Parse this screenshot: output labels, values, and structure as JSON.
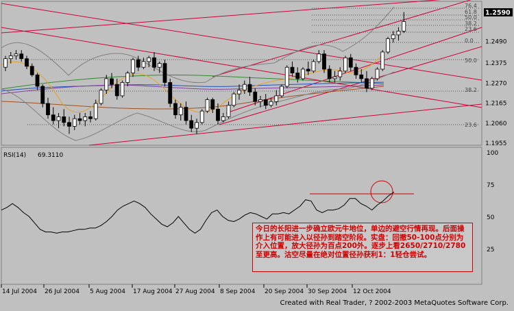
{
  "chart_data": [
    {
      "type": "candlestick",
      "panel": "price",
      "ylim": [
        1.1955,
        1.266
      ],
      "yticks": [
        "1.2590",
        "1.2490",
        "1.2375",
        "1.2270",
        "1.2165",
        "1.2060",
        "1.1955"
      ],
      "current_price": "1.2590",
      "fib_labels": [
        "76.4",
        "61.8",
        "50.0",
        "38.2",
        "23.6",
        "0.0",
        "50.0",
        "38.2",
        "23.6"
      ],
      "ohlc": [
        [
          1.235,
          1.241,
          1.233,
          1.2395
        ],
        [
          1.2395,
          1.243,
          1.237,
          1.241
        ],
        [
          1.241,
          1.244,
          1.239,
          1.242
        ],
        [
          1.242,
          1.244,
          1.238,
          1.2395
        ],
        [
          1.2395,
          1.241,
          1.234,
          1.2355
        ],
        [
          1.2355,
          1.237,
          1.23,
          1.231
        ],
        [
          1.231,
          1.232,
          1.223,
          1.225
        ],
        [
          1.225,
          1.226,
          1.214,
          1.216
        ],
        [
          1.216,
          1.219,
          1.208,
          1.21
        ],
        [
          1.21,
          1.214,
          1.205,
          1.207
        ],
        [
          1.207,
          1.211,
          1.203,
          1.209
        ],
        [
          1.209,
          1.213,
          1.204,
          1.206
        ],
        [
          1.206,
          1.209,
          1.2,
          1.204
        ],
        [
          1.204,
          1.21,
          1.202,
          1.208
        ],
        [
          1.208,
          1.211,
          1.205,
          1.207
        ],
        [
          1.207,
          1.211,
          1.204,
          1.209
        ],
        [
          1.209,
          1.212,
          1.206,
          1.208
        ],
        [
          1.208,
          1.218,
          1.207,
          1.216
        ],
        [
          1.216,
          1.224,
          1.215,
          1.223
        ],
        [
          1.223,
          1.231,
          1.221,
          1.229
        ],
        [
          1.229,
          1.232,
          1.224,
          1.226
        ],
        [
          1.226,
          1.229,
          1.218,
          1.22
        ],
        [
          1.22,
          1.228,
          1.219,
          1.227
        ],
        [
          1.227,
          1.233,
          1.225,
          1.232
        ],
        [
          1.232,
          1.24,
          1.23,
          1.239
        ],
        [
          1.239,
          1.241,
          1.233,
          1.235
        ],
        [
          1.235,
          1.24,
          1.234,
          1.238
        ],
        [
          1.238,
          1.241,
          1.235,
          1.24
        ],
        [
          1.24,
          1.243,
          1.233,
          1.235
        ],
        [
          1.235,
          1.238,
          1.232,
          1.237
        ],
        [
          1.237,
          1.239,
          1.225,
          1.227
        ],
        [
          1.227,
          1.229,
          1.214,
          1.216
        ],
        [
          1.216,
          1.218,
          1.208,
          1.21
        ],
        [
          1.21,
          1.216,
          1.207,
          1.214
        ],
        [
          1.214,
          1.217,
          1.205,
          1.207
        ],
        [
          1.207,
          1.21,
          1.201,
          1.203
        ],
        [
          1.203,
          1.208,
          1.2,
          1.206
        ],
        [
          1.206,
          1.213,
          1.205,
          1.212
        ],
        [
          1.212,
          1.219,
          1.211,
          1.218
        ],
        [
          1.218,
          1.219,
          1.211,
          1.213
        ],
        [
          1.213,
          1.216,
          1.205,
          1.207
        ],
        [
          1.207,
          1.211,
          1.206,
          1.209
        ],
        [
          1.209,
          1.217,
          1.208,
          1.215
        ],
        [
          1.215,
          1.222,
          1.214,
          1.221
        ],
        [
          1.221,
          1.226,
          1.218,
          1.223
        ],
        [
          1.223,
          1.228,
          1.221,
          1.226
        ],
        [
          1.226,
          1.23,
          1.22,
          1.222
        ],
        [
          1.222,
          1.224,
          1.215,
          1.217
        ],
        [
          1.217,
          1.22,
          1.214,
          1.218
        ],
        [
          1.218,
          1.221,
          1.213,
          1.215
        ],
        [
          1.215,
          1.219,
          1.214,
          1.217
        ],
        [
          1.217,
          1.223,
          1.215,
          1.22
        ],
        [
          1.22,
          1.226,
          1.219,
          1.225
        ],
        [
          1.225,
          1.236,
          1.224,
          1.235
        ],
        [
          1.235,
          1.238,
          1.23,
          1.232
        ],
        [
          1.232,
          1.235,
          1.227,
          1.229
        ],
        [
          1.229,
          1.235,
          1.228,
          1.234
        ],
        [
          1.234,
          1.238,
          1.231,
          1.233
        ],
        [
          1.233,
          1.239,
          1.232,
          1.238
        ],
        [
          1.238,
          1.244,
          1.237,
          1.242
        ],
        [
          1.242,
          1.244,
          1.232,
          1.234
        ],
        [
          1.234,
          1.236,
          1.227,
          1.229
        ],
        [
          1.229,
          1.233,
          1.227,
          1.23
        ],
        [
          1.23,
          1.235,
          1.228,
          1.233
        ],
        [
          1.233,
          1.241,
          1.232,
          1.24
        ],
        [
          1.24,
          1.242,
          1.233,
          1.235
        ],
        [
          1.235,
          1.237,
          1.229,
          1.231
        ],
        [
          1.231,
          1.234,
          1.227,
          1.229
        ],
        [
          1.229,
          1.233,
          1.222,
          1.224
        ],
        [
          1.224,
          1.23,
          1.223,
          1.229
        ],
        [
          1.229,
          1.235,
          1.228,
          1.234
        ],
        [
          1.234,
          1.244,
          1.233,
          1.243
        ],
        [
          1.243,
          1.251,
          1.242,
          1.25
        ],
        [
          1.25,
          1.254,
          1.248,
          1.252
        ],
        [
          1.252,
          1.256,
          1.249,
          1.254
        ],
        [
          1.254,
          1.264,
          1.253,
          1.259
        ]
      ]
    },
    {
      "type": "line",
      "panel": "rsi",
      "title": "RSI(14)",
      "current_value": "69.3110",
      "ylim": [
        0,
        100
      ],
      "yticks": [
        "100",
        "75",
        "50",
        "25",
        "0"
      ],
      "values": [
        55,
        57,
        60,
        57,
        53,
        50,
        45,
        40,
        38,
        38,
        37,
        38,
        38,
        39,
        40,
        40,
        41,
        41,
        43,
        46,
        50,
        55,
        58,
        60,
        62,
        60,
        57,
        52,
        48,
        44,
        42,
        45,
        50,
        45,
        40,
        37,
        40,
        47,
        53,
        55,
        50,
        47,
        46,
        48,
        51,
        53,
        52,
        50,
        48,
        52,
        52,
        53,
        52,
        55,
        58,
        63,
        62,
        55,
        53,
        55,
        55,
        56,
        59,
        64,
        64,
        60,
        58,
        55,
        59,
        62,
        66,
        69
      ],
      "annotation": {
        "type": "level_line",
        "value": 66
      }
    }
  ],
  "x_labels": [
    "14 Jul 2004",
    "26 Jul 2004",
    "5 Aug 2004",
    "17 Aug 2004",
    "27 Aug 2004",
    "8 Sep 2004",
    "20 Sep 2004",
    "30 Sep 2004",
    "12 Oct 2004"
  ],
  "note": "今日的长阳进一步确立欧元牛地位，单边的避空行情再现。后面操作上有可能进入以径孙到踏空阶段。实盘：回撤50-100点分别为介入位置，放大径孙为百点200外。逐步上看2650/2710/2780至更高。沽空尽量在绝对位置径孙获利1：1轻仓尝试。",
  "credit": "Created with Real Trader, ? 2002-2003 MetaQuotes Software Corp.",
  "colors": {
    "up": "#ffffff",
    "down": "#000000",
    "trend": "#d0003a",
    "note": "#d00000",
    "rsi": "#000000",
    "price_tag_bg": "#000000"
  }
}
